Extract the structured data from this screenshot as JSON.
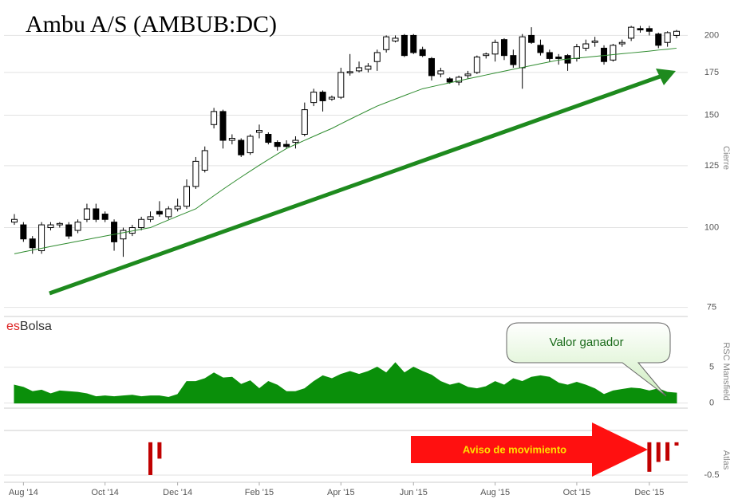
{
  "chart_data": [
    {
      "type": "candlestick",
      "title": "Ambu A/S (AMBUB:DC)",
      "y_label": "Cierre",
      "brand": {
        "prefix": "es",
        "name": "Bolsa"
      },
      "open": [
        102,
        101,
        96,
        92,
        100,
        101,
        101,
        99,
        103,
        107,
        105,
        102,
        96,
        98,
        100,
        103,
        106,
        104,
        107,
        108,
        116,
        123,
        145,
        152,
        137,
        137,
        131,
        141,
        140,
        136,
        135,
        136,
        140,
        157,
        163,
        159,
        160,
        175,
        176,
        177,
        182,
        190,
        196,
        200,
        200,
        190,
        184,
        174,
        171,
        169,
        173,
        175,
        186,
        187,
        197,
        186,
        178,
        200,
        193,
        188,
        185,
        186,
        184,
        191,
        195,
        191,
        183,
        194,
        198,
        205,
        205,
        201,
        195,
        200
      ],
      "high": [
        105,
        102,
        97,
        102,
        102,
        102,
        102,
        103,
        109,
        109,
        106,
        103,
        100,
        101,
        104,
        106,
        110,
        108,
        111,
        119,
        129,
        134,
        154,
        153,
        140,
        138,
        140,
        145,
        141,
        137,
        137,
        139,
        157,
        165,
        164,
        161,
        178,
        187,
        182,
        181,
        190,
        200,
        200,
        201,
        201,
        192,
        185,
        178,
        172,
        173,
        176,
        186,
        188,
        197,
        198,
        190,
        201,
        206,
        197,
        190,
        187,
        187,
        194,
        197,
        199,
        193,
        194,
        197,
        207,
        207,
        207,
        202,
        203,
        204
      ],
      "low": [
        101,
        95,
        91,
        91,
        99,
        100,
        96,
        98,
        102,
        102,
        102,
        92,
        90,
        97,
        99,
        102,
        104,
        103,
        106,
        107,
        115,
        122,
        143,
        133,
        135,
        129,
        130,
        138,
        135,
        132,
        133,
        133,
        139,
        155,
        152,
        158,
        159,
        173,
        175,
        175,
        176,
        188,
        195,
        185,
        187,
        185,
        170,
        172,
        168,
        167,
        171,
        174,
        184,
        182,
        183,
        178,
        165,
        194,
        186,
        182,
        180,
        176,
        182,
        189,
        192,
        180,
        182,
        192,
        196,
        202,
        200,
        191,
        192,
        198
      ],
      "close": [
        103,
        96,
        93,
        101,
        101,
        101.5,
        97,
        102,
        107,
        103,
        103,
        95,
        99,
        100,
        103,
        104,
        105,
        107,
        108,
        116,
        127,
        132,
        152,
        137,
        138,
        130,
        139,
        142,
        136,
        134,
        134,
        137,
        153,
        163,
        158,
        160,
        175,
        175.5,
        178,
        179,
        188,
        199,
        198,
        186,
        188,
        186,
        173,
        176,
        169,
        172,
        174,
        185,
        187,
        195,
        186,
        180,
        199,
        195,
        188,
        184,
        184,
        181,
        192,
        194,
        196,
        182,
        193,
        195,
        206,
        204,
        203,
        193,
        202,
        203
      ],
      "moving_average": {
        "color": "#2e8b2e",
        "values": [
          91,
          91.6,
          92.2,
          92.8,
          93.4,
          94,
          94.6,
          95.2,
          95.8,
          96.4,
          97,
          97.6,
          98.2,
          98.8,
          99.4,
          100,
          101.4,
          102.8,
          104.2,
          105.6,
          107,
          109.6,
          112.2,
          114.8,
          117.4,
          120,
          122.6,
          125.2,
          127.8,
          130.4,
          133,
          135,
          137,
          139,
          141,
          143,
          145.4,
          147.8,
          150.2,
          152.6,
          155,
          157,
          159,
          161,
          163,
          165,
          166.2,
          167.4,
          168.6,
          169.8,
          171,
          172.2,
          173.4,
          174.6,
          175.8,
          177,
          178.2,
          179.4,
          180.6,
          181.8,
          183,
          183.6,
          184.2,
          184.8,
          185.4,
          186,
          186.6,
          187.2,
          187.8,
          188.4,
          189,
          189.7,
          190.3,
          191
        ]
      },
      "up_color": "#ffffff",
      "down_color": "#000000",
      "ylim": [
        73,
        224
      ],
      "yticks": [
        75,
        100,
        125,
        150,
        175,
        200
      ],
      "log_scale": true,
      "grid": true
    },
    {
      "type": "area",
      "y_label": "RSC Mansfield",
      "annotation": "Valor ganador",
      "color": "#0a8f0a",
      "values": [
        2.5,
        2.2,
        1.6,
        1.8,
        1.3,
        1.7,
        1.6,
        1.5,
        1.3,
        0.9,
        1.0,
        0.9,
        1.0,
        1.1,
        0.9,
        1.0,
        1.0,
        0.8,
        1.2,
        3.0,
        3.0,
        3.4,
        4.2,
        3.5,
        3.6,
        2.6,
        3.1,
        2.0,
        3.0,
        2.5,
        1.6,
        1.6,
        2.0,
        3.0,
        3.8,
        3.4,
        4.0,
        4.4,
        4.0,
        4.4,
        5.0,
        4.2,
        5.6,
        4.2,
        5.0,
        4.4,
        3.9,
        3.0,
        2.5,
        2.8,
        2.2,
        2.0,
        2.3,
        3.0,
        2.5,
        3.4,
        3.0,
        3.6,
        3.8,
        3.6,
        2.8,
        2.5,
        2.9,
        2.5,
        2.0,
        1.2,
        1.7,
        1.9,
        2.1,
        2.0,
        1.7,
        2.0,
        1.5,
        1.4
      ],
      "ylim": [
        -0.7,
        9.5
      ],
      "yticks": [
        0,
        5
      ],
      "grid": true
    },
    {
      "type": "bar",
      "y_label": "Atlas",
      "annotation": "Aviso de movimiento",
      "color": "#c00000",
      "values": [
        null,
        null,
        null,
        null,
        null,
        null,
        null,
        null,
        null,
        null,
        null,
        null,
        null,
        null,
        null,
        -0.5,
        -0.25,
        null,
        null,
        null,
        null,
        null,
        null,
        null,
        null,
        null,
        null,
        null,
        null,
        null,
        null,
        null,
        null,
        null,
        null,
        null,
        null,
        null,
        null,
        null,
        null,
        null,
        null,
        null,
        null,
        null,
        null,
        null,
        null,
        null,
        null,
        null,
        null,
        null,
        null,
        null,
        null,
        null,
        null,
        null,
        null,
        null,
        null,
        null,
        null,
        null,
        null,
        null,
        null,
        null,
        -0.45,
        -0.3,
        -0.28,
        -0.05
      ],
      "categories": [
        null,
        "Aug '14",
        null,
        null,
        null,
        null,
        null,
        null,
        null,
        null,
        "Oct '14",
        null,
        null,
        null,
        null,
        null,
        null,
        null,
        "Dec '14",
        null,
        null,
        null,
        null,
        null,
        null,
        null,
        null,
        "Feb '15",
        null,
        null,
        null,
        null,
        null,
        null,
        null,
        null,
        "Apr '15",
        null,
        null,
        null,
        null,
        null,
        null,
        null,
        "Jun '15",
        null,
        null,
        null,
        null,
        null,
        null,
        null,
        null,
        "Aug '15",
        null,
        null,
        null,
        null,
        null,
        null,
        null,
        null,
        "Oct '15",
        null,
        null,
        null,
        null,
        null,
        null,
        null,
        "Dec '15",
        null,
        null,
        null
      ],
      "ylim": [
        -0.61,
        0.18
      ],
      "yticks": [
        -0.5
      ],
      "grid": true
    }
  ]
}
